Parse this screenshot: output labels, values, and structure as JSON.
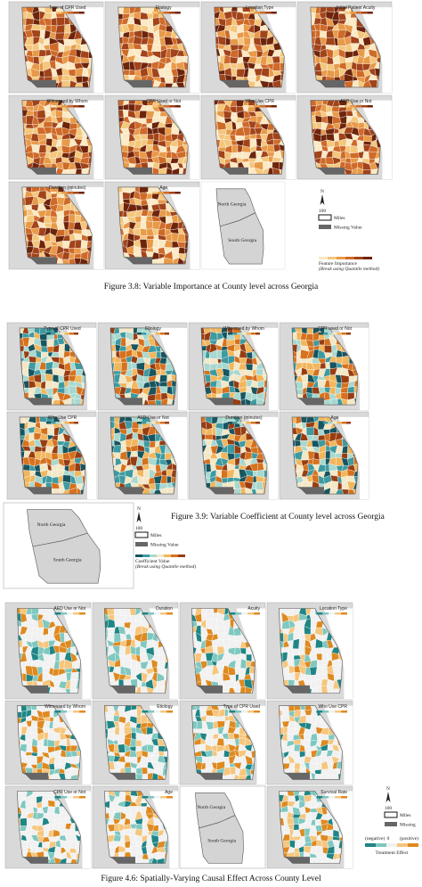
{
  "figure_3_8": {
    "panels": [
      "Type of CPR Used",
      "Etiology",
      "Location Type",
      "Initial Patient Acuity",
      "Witnessed by Whom",
      "CPR Used or Not",
      "Who Use CPR",
      "AED Use or Not",
      "Duration (minutes)",
      "Age"
    ],
    "inset": {
      "north": "North Georgia",
      "south": "South Georgia"
    },
    "legend": {
      "north_arrow": "N",
      "scale": "100",
      "scale_unit": "Miles",
      "missing": "Missing Value",
      "title": "Feature Importance",
      "note": "(Break using Quantile method)"
    },
    "caption": "Figure 3.8: Variable Importance at County level across Georgia"
  },
  "figure_3_9": {
    "panels": [
      "Type of CPR Used",
      "Etiology",
      "Witnessed by Whom",
      "CPR used or Not",
      "Who Use CPR",
      "AED Use or Not",
      "Duration (minutes)",
      "Age"
    ],
    "inset": {
      "north": "North Georgia",
      "south": "South Georgia"
    },
    "legend": {
      "north_arrow": "N",
      "scale": "100",
      "scale_unit": "Miles",
      "missing": "Missing Value",
      "title": "Coefficient Value",
      "note": "(Break using Quantile method)"
    },
    "caption": "Figure 3.9: Variable Coefficient at County level across Georgia"
  },
  "figure_4_6": {
    "panels": [
      "AED Use or Not",
      "Duration",
      "Acuity",
      "Location Type",
      "Witnessed by Whom",
      "Etiology",
      "Type of CPR Used",
      "Who Use CPR",
      "CPR Use or Not",
      "Age",
      "Survival Rate"
    ],
    "inset": {
      "north": "North Georgia",
      "south": "South Georgia"
    },
    "legend": {
      "north_arrow": "N",
      "scale": "100",
      "scale_unit": "Miles",
      "missing": "Missing",
      "negative": "(negative)",
      "zero": "0",
      "positive": "(positive)",
      "title": "Treatment Effect"
    },
    "caption": "Figure 4.6: Spatially-Varying Causal Effect Across County Level"
  }
}
